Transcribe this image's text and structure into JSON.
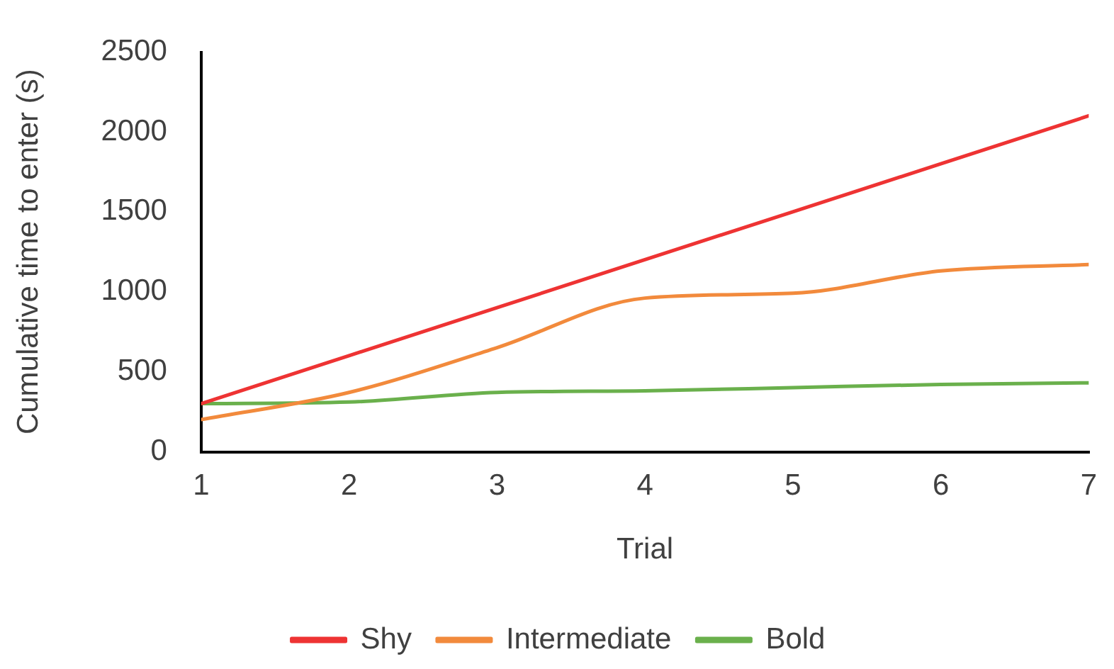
{
  "chart_data": {
    "type": "line",
    "xlabel": "Trial",
    "ylabel": "Cumulative time to enter (s)",
    "x": [
      1,
      2,
      3,
      4,
      5,
      6,
      7
    ],
    "series": [
      {
        "name": "Shy",
        "color": "#ee3333",
        "values": [
          300,
          600,
          900,
          1200,
          1500,
          1800,
          2100
        ]
      },
      {
        "name": "Intermediate",
        "color": "#f28a3c",
        "values": [
          200,
          370,
          650,
          960,
          990,
          1130,
          1170
        ]
      },
      {
        "name": "Bold",
        "color": "#6ab04c",
        "values": [
          300,
          310,
          370,
          380,
          400,
          420,
          430
        ]
      }
    ],
    "xlim": [
      1,
      7
    ],
    "xticks": [
      1,
      2,
      3,
      4,
      5,
      6,
      7
    ],
    "ylim": [
      0,
      2500
    ],
    "yticks": [
      0,
      500,
      1000,
      1500,
      2000,
      2500
    ],
    "legend": "bottom",
    "marker": "none",
    "line_style": "solid",
    "grid": false
  }
}
